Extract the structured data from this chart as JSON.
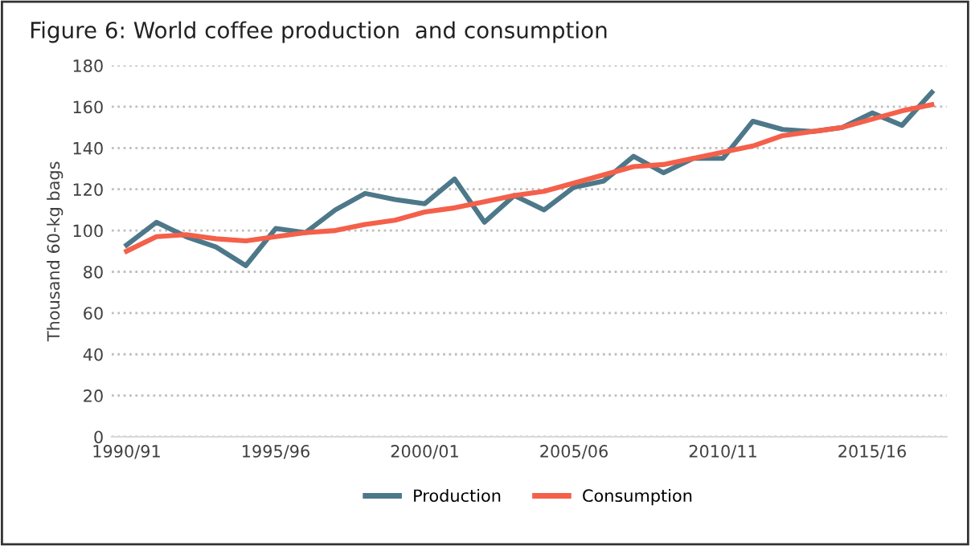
{
  "chart_data": {
    "type": "line",
    "title": "Figure 6: World coffee production  and consumption",
    "ylabel": "Thousand 60-kg bags",
    "categories": [
      "1990/91",
      null,
      null,
      null,
      null,
      "1995/96",
      null,
      null,
      null,
      null,
      "2000/01",
      null,
      null,
      null,
      null,
      "2005/06",
      null,
      null,
      null,
      null,
      "2010/11",
      null,
      null,
      null,
      null,
      "2015/16",
      null,
      null
    ],
    "series": [
      {
        "name": "Production",
        "color": "#4d7889",
        "values": [
          93,
          104,
          97,
          92,
          83,
          101,
          99,
          110,
          118,
          115,
          113,
          125,
          104,
          117,
          110,
          121,
          124,
          136,
          128,
          135,
          135,
          153,
          149,
          148,
          150,
          157,
          151,
          167
        ]
      },
      {
        "name": "Consumption",
        "color": "#f4604a",
        "values": [
          90,
          97,
          98,
          96,
          95,
          97,
          99,
          100,
          103,
          105,
          109,
          111,
          114,
          117,
          119,
          123,
          127,
          131,
          132,
          135,
          138,
          141,
          146,
          148,
          150,
          154,
          158,
          161
        ]
      }
    ],
    "ylim": [
      0,
      180
    ],
    "yticks": [
      0,
      20,
      40,
      60,
      80,
      100,
      120,
      140,
      160,
      180
    ],
    "grid": "y",
    "legend": "bottom",
    "line_style": "solid",
    "marker": "none"
  }
}
